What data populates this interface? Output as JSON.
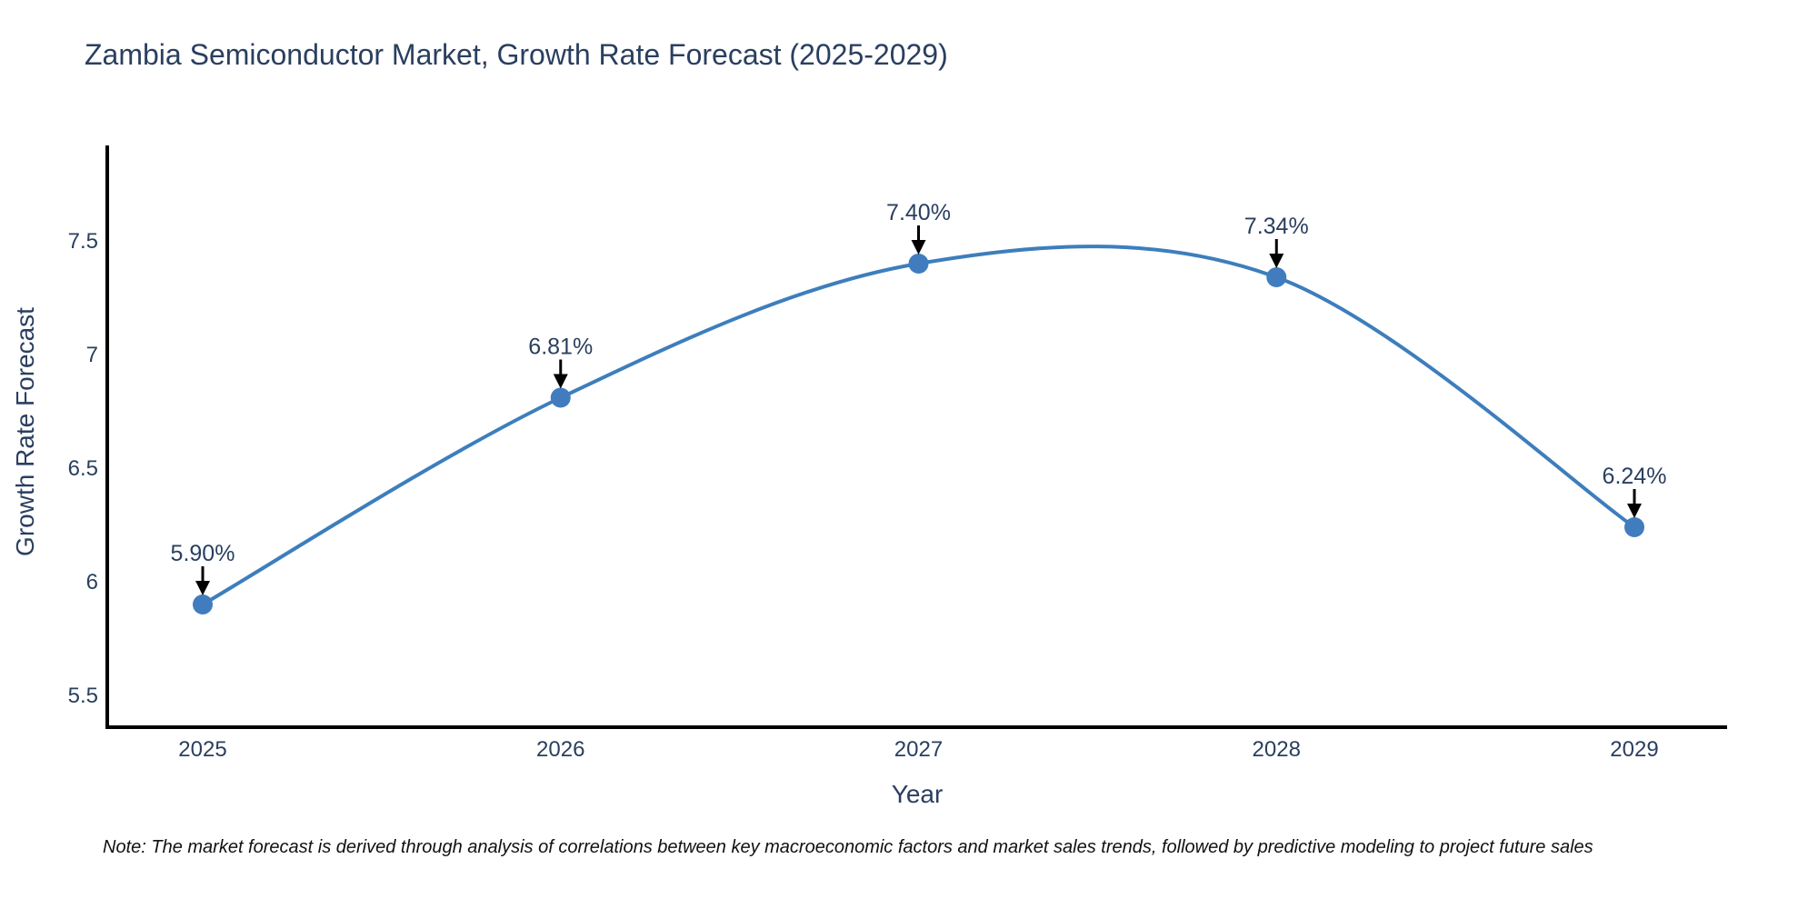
{
  "title": "Zambia Semiconductor Market, Growth Rate Forecast (2025-2029)",
  "note": "Note: The market forecast is derived through analysis of correlations between key macroeconomic factors and market sales trends, followed by predictive modeling to project future sales",
  "chart_data": {
    "type": "line",
    "title": "Zambia Semiconductor Market, Growth Rate Forecast (2025-2029)",
    "x": [
      2025,
      2026,
      2027,
      2028,
      2029
    ],
    "values": [
      5.9,
      6.81,
      7.4,
      7.34,
      6.24
    ],
    "point_labels": [
      "5.90%",
      "6.81%",
      "7.40%",
      "7.34%",
      "6.24%"
    ],
    "xlabel": "Year",
    "ylabel": "Growth Rate Forecast",
    "xtick_labels": [
      "2025",
      "2026",
      "2027",
      "2028",
      "2029"
    ],
    "yticks": [
      5.5,
      6,
      6.5,
      7,
      7.5
    ],
    "ytick_labels": [
      "5.5",
      "6",
      "6.5",
      "7",
      "7.5"
    ],
    "ylim": [
      5.36,
      7.92
    ],
    "grid": false,
    "legend": "none",
    "smooth": true,
    "marker": "circle",
    "annotations_have_arrows": true
  },
  "colors": {
    "line": "#3d7ebc",
    "marker": "#417dbe",
    "chart_text": "#2a3f5f",
    "axis_line": "#000000",
    "annotation_arrow": "#000000",
    "note_text": "#111111",
    "background": "#ffffff"
  }
}
